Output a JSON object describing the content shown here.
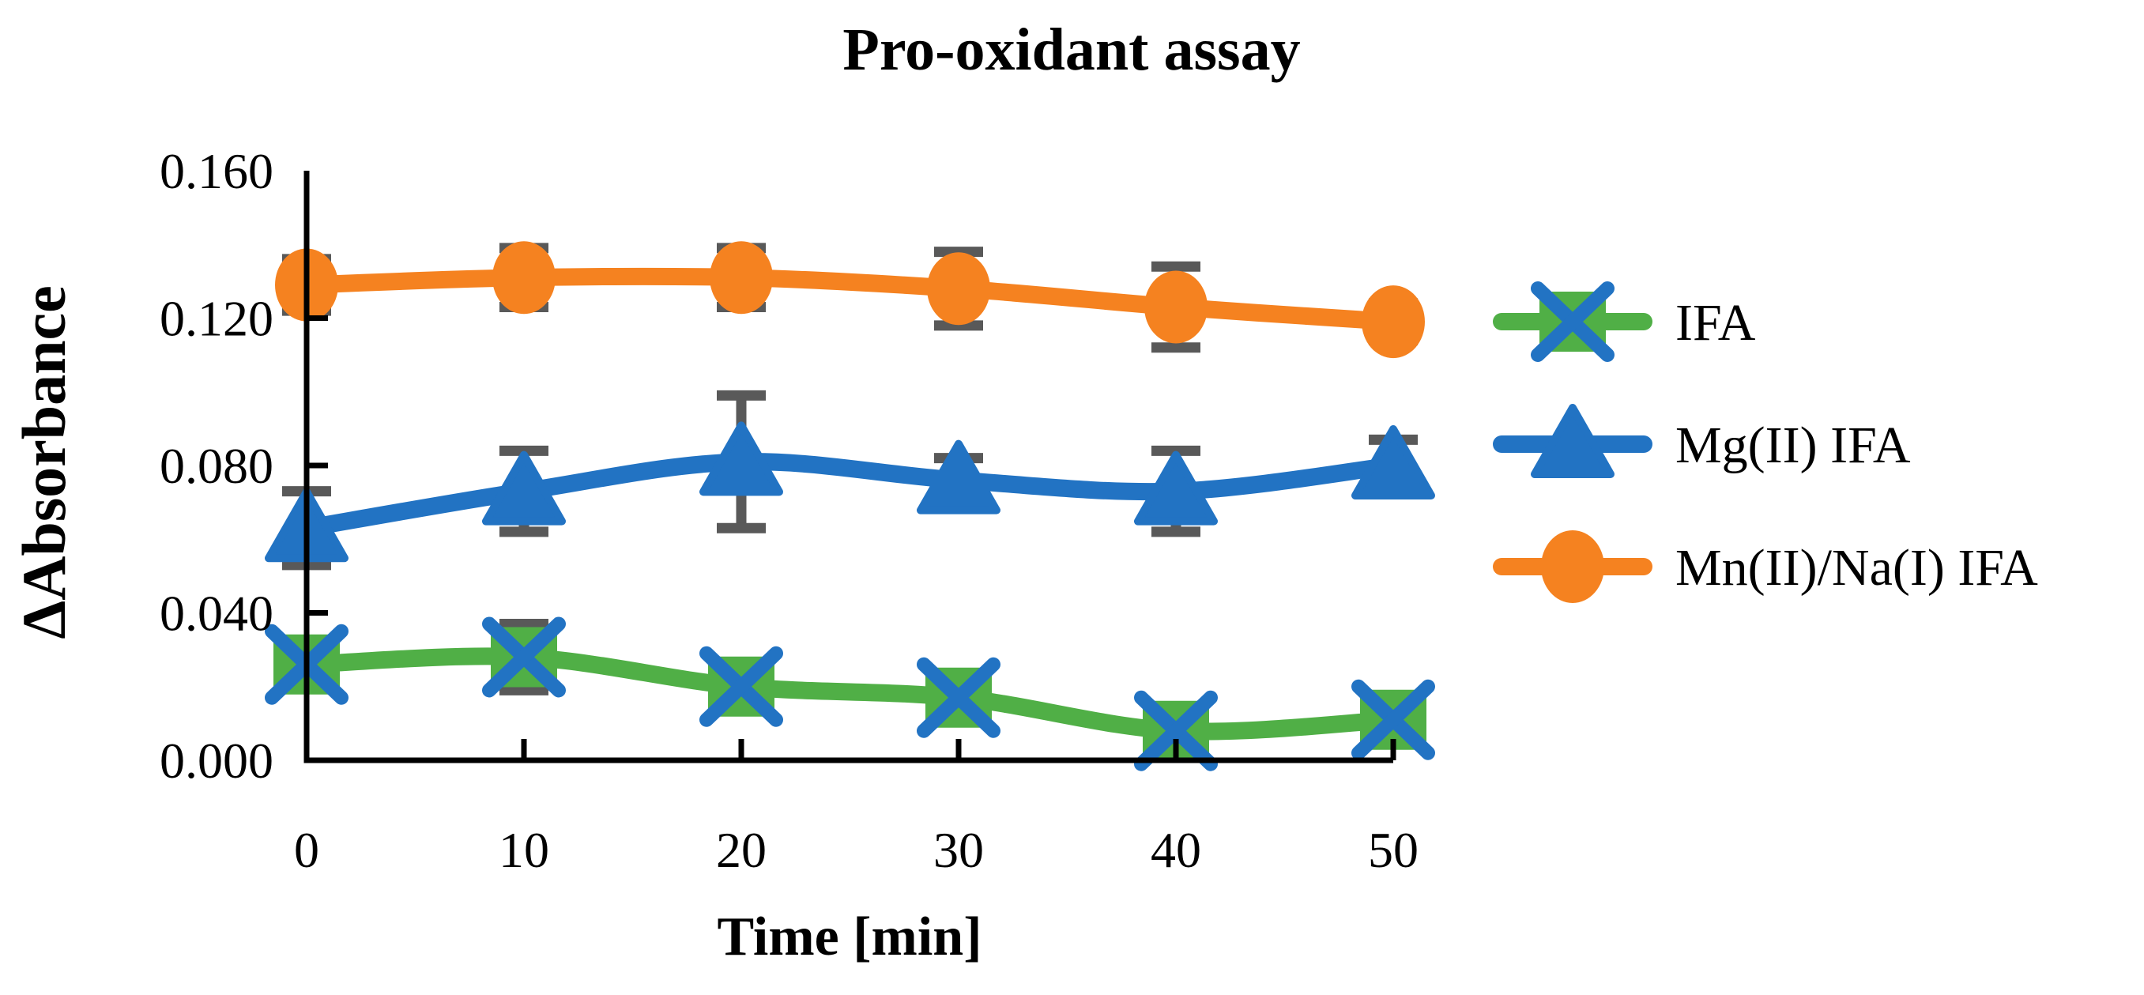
{
  "title": "Pro-oxidant assay",
  "background_color": "#FFFFFF",
  "text_color": "#000000",
  "chart_data": {
    "type": "line",
    "title": "Pro-oxidant assay",
    "xlabel": "Time [min]",
    "ylabel": "ΔAbsorbance",
    "x": [
      0,
      10,
      20,
      30,
      40,
      50
    ],
    "x_tick_labels": [
      "0",
      "10",
      "20",
      "30",
      "40",
      "50"
    ],
    "y_ticks": [
      0.0,
      0.04,
      0.08,
      0.12,
      0.16
    ],
    "y_tick_labels": [
      "0.000",
      "0.040",
      "0.080",
      "0.120",
      "0.160"
    ],
    "xlim": [
      0,
      50
    ],
    "ylim": [
      0,
      0.16
    ],
    "grid": false,
    "smooth_lines": true,
    "error_bars": true,
    "error_bar_color": "#595959",
    "axis_color": "#000000",
    "legend_position": "right",
    "series": [
      {
        "name": "IFA",
        "color": "#50AF46",
        "marker": "x-square",
        "marker_accent": "#2273C3",
        "values": [
          0.026,
          0.028,
          0.02,
          0.017,
          0.008,
          0.011
        ],
        "errors": [
          0.005,
          0.009,
          0.003,
          0.002,
          0.002,
          0.002
        ]
      },
      {
        "name": "Mg(II) IFA",
        "color": "#2273C3",
        "marker": "triangle",
        "marker_accent": "#2273C3",
        "values": [
          0.063,
          0.073,
          0.081,
          0.076,
          0.073,
          0.08
        ],
        "errors": [
          0.01,
          0.011,
          0.018,
          0.006,
          0.011,
          0.007
        ]
      },
      {
        "name": "Mn(II)/Na(I) IFA",
        "color": "#F58220",
        "marker": "circle",
        "marker_accent": "#F58220",
        "values": [
          0.129,
          0.131,
          0.131,
          0.128,
          0.123,
          0.119
        ],
        "errors": [
          0.007,
          0.008,
          0.008,
          0.01,
          0.011,
          0.005
        ]
      }
    ]
  }
}
